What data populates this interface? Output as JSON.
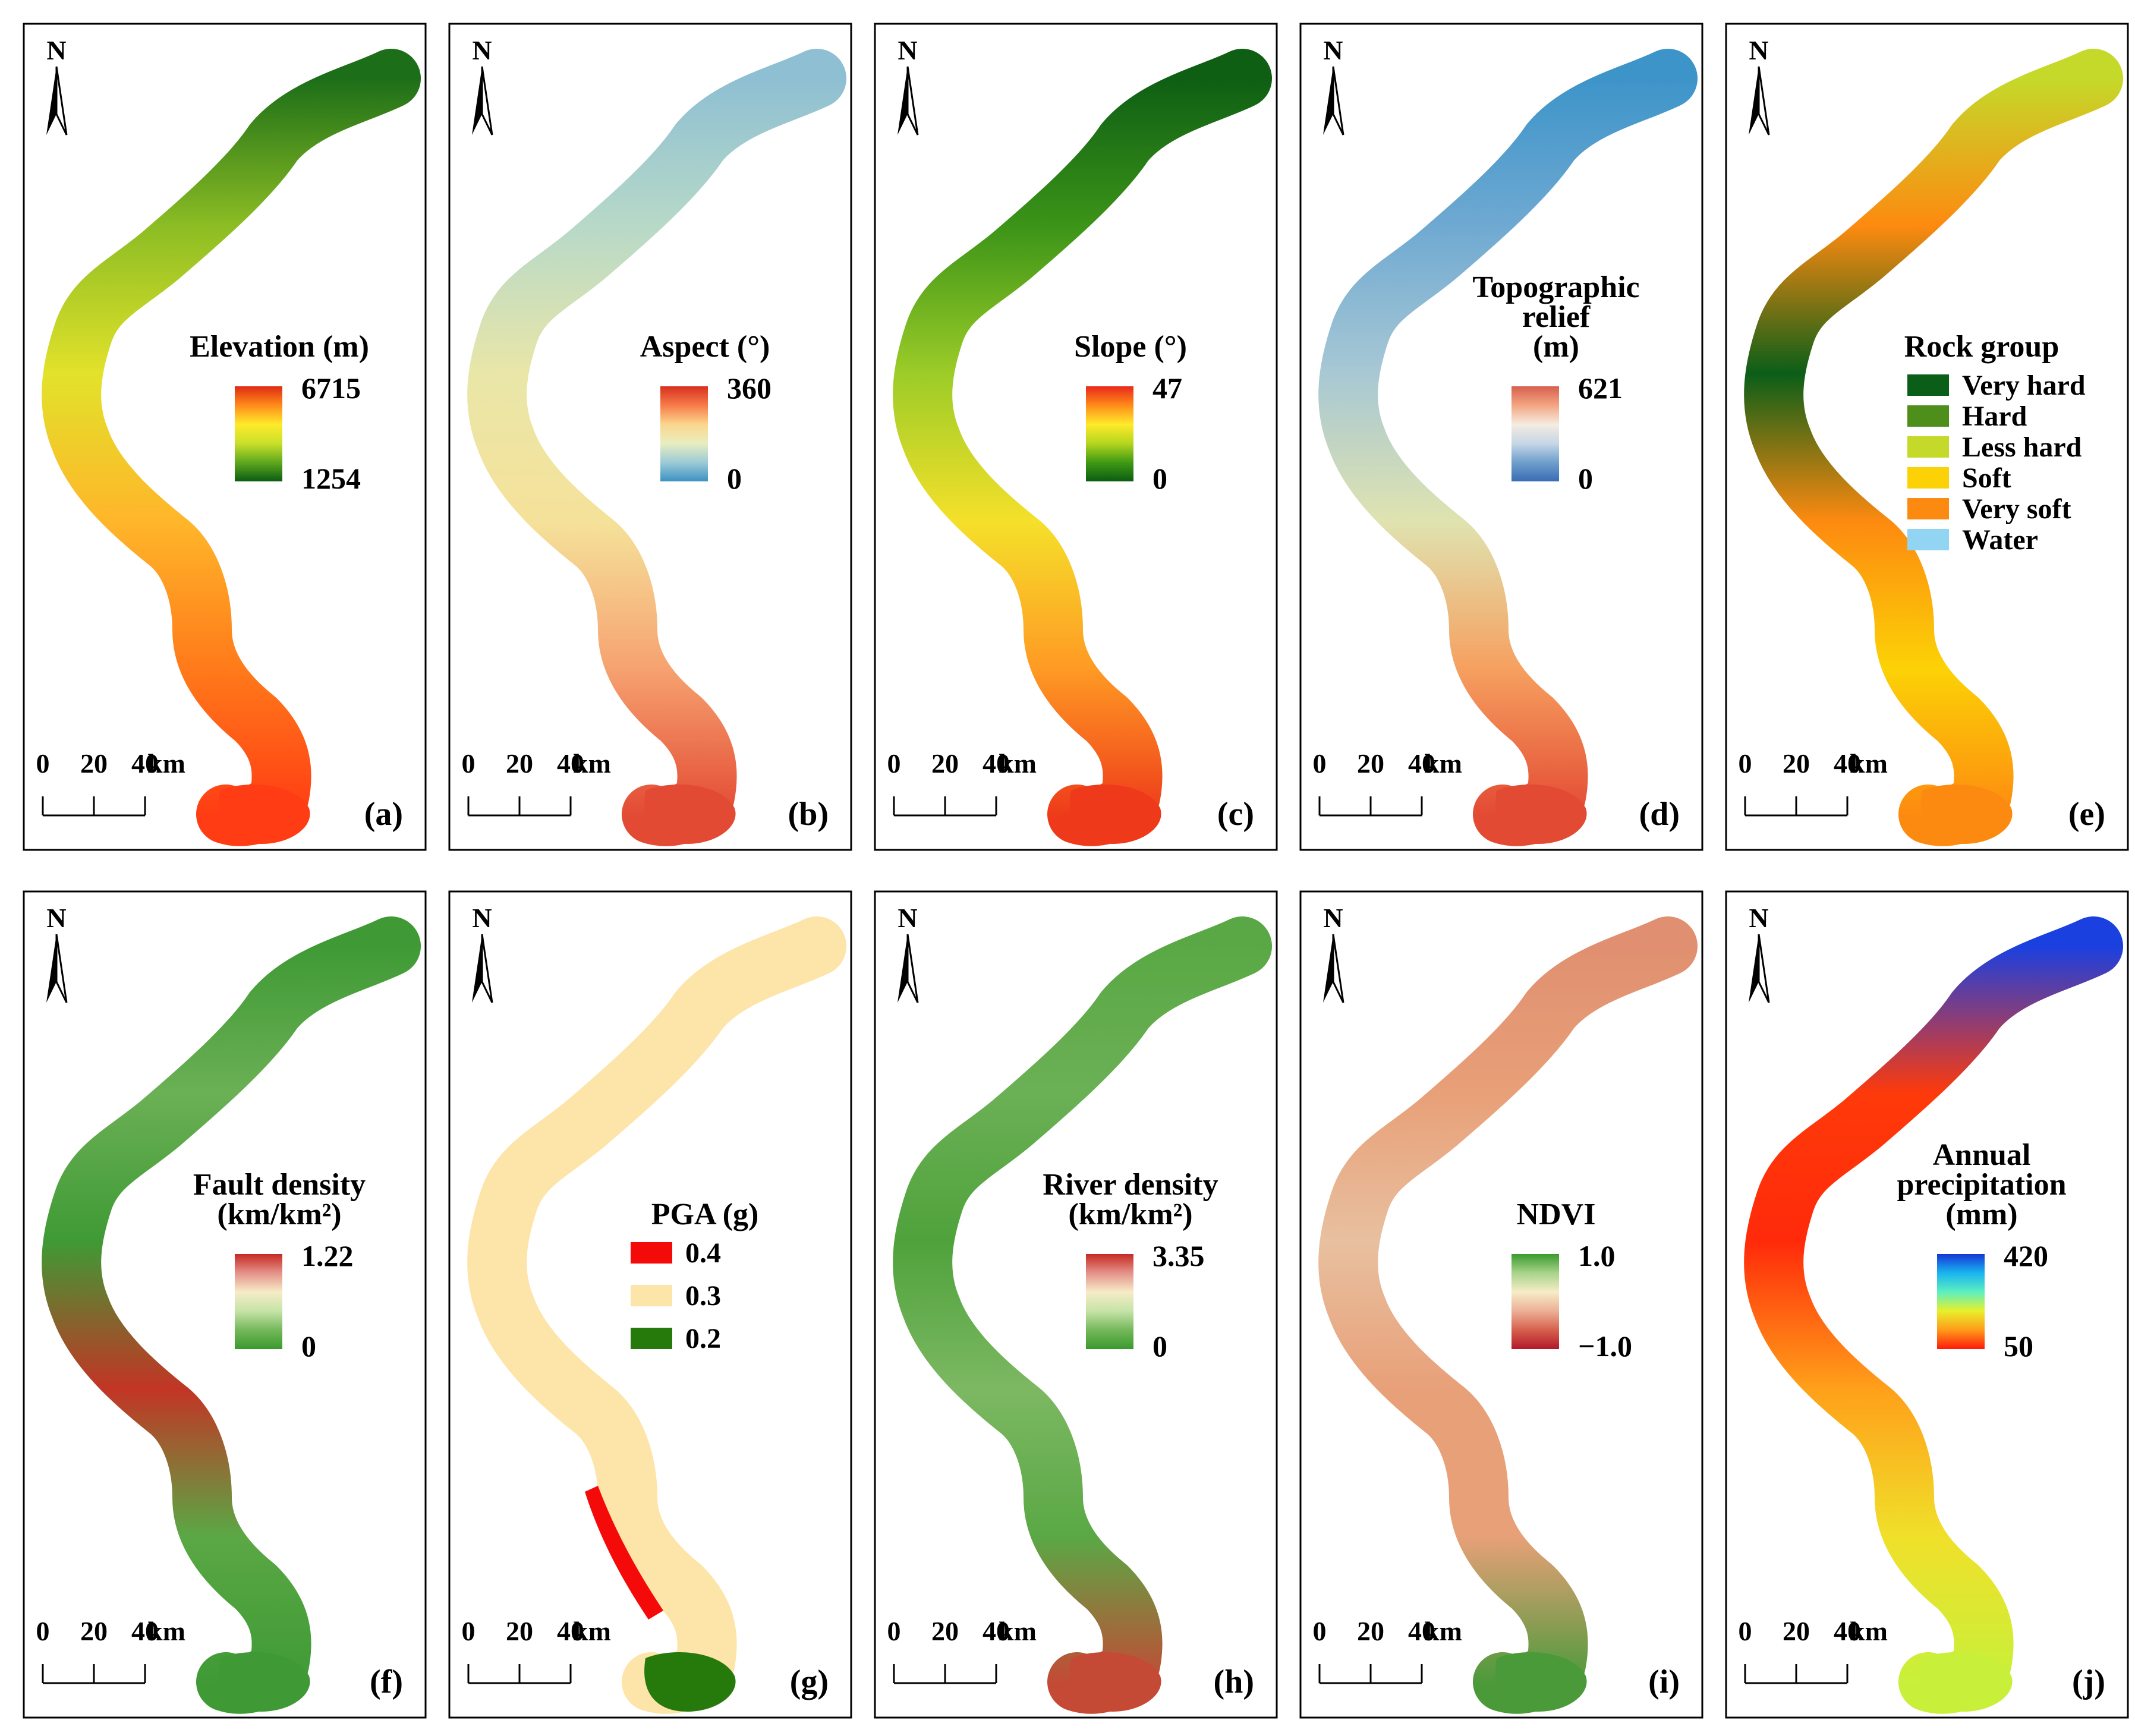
{
  "north_label": "N",
  "scale_bar": {
    "tick_labels": [
      "0",
      "20",
      "40"
    ],
    "unit": "km"
  },
  "panels": [
    {
      "label": "(a)",
      "legend": {
        "type": "ramp",
        "title_lines": [
          "Elevation (m)"
        ],
        "max": "6715",
        "min": "1254",
        "stops": [
          "#e02a12",
          "#ff8c1a",
          "#ffea2a",
          "#c9e02a",
          "#5fa81e",
          "#0b5c12"
        ],
        "fill_stops": [
          "#ff3c14",
          "#ff7a1a",
          "#ffb62a",
          "#e2e22a",
          "#8cbd24",
          "#1c6e18"
        ]
      }
    },
    {
      "label": "(b)",
      "legend": {
        "type": "ramp",
        "title_lines": [
          "Aspect (°)"
        ],
        "max": "360",
        "min": "0",
        "stops": [
          "#d7301f",
          "#f77b4a",
          "#fbd68c",
          "#e8eec0",
          "#9ccbd6",
          "#3d91c4"
        ],
        "fill_stops": [
          "#e34a33",
          "#f6a270",
          "#f5e29a",
          "#e9e6a8",
          "#b7d9c8",
          "#8ebfd2"
        ]
      }
    },
    {
      "label": "(c)",
      "legend": {
        "type": "ramp",
        "title_lines": [
          "Slope (°)"
        ],
        "max": "47",
        "min": "0",
        "stops": [
          "#e8281a",
          "#ff8c1a",
          "#ffea2a",
          "#b5d61e",
          "#3f9a14",
          "#0b5c12"
        ],
        "fill_stops": [
          "#ee3a1a",
          "#ff9a24",
          "#f5e02a",
          "#9ccc28",
          "#3c9418",
          "#0e5e14"
        ]
      }
    },
    {
      "label": "(d)",
      "legend": {
        "type": "ramp",
        "title_lines": [
          "Topographic",
          "relief",
          "(m)"
        ],
        "max": "621",
        "min": "0",
        "stops": [
          "#d6604d",
          "#f4a582",
          "#f5ece0",
          "#c6d7e6",
          "#6f9fcc",
          "#3a6db3"
        ],
        "fill_stops": [
          "#e34a33",
          "#f6a060",
          "#dfe3b0",
          "#a8c8d4",
          "#6fa9d2",
          "#3d94c9"
        ]
      }
    },
    {
      "label": "(e)",
      "legend": {
        "type": "classes",
        "title_lines": [
          "Rock group"
        ],
        "classes": [
          {
            "name": "Very hard",
            "color": "#0b5e18"
          },
          {
            "name": "Hard",
            "color": "#4d8f1a"
          },
          {
            "name": "Less hard",
            "color": "#c5d92a"
          },
          {
            "name": "Soft",
            "color": "#fcd206"
          },
          {
            "name": "Very soft",
            "color": "#fd8a10"
          },
          {
            "name": "Water",
            "color": "#91d5f2"
          }
        ],
        "fill_stops": [
          "#fd8a10",
          "#fcd206",
          "#fd8a10",
          "#0b5e18",
          "#fd8a10",
          "#c5d92a"
        ]
      }
    },
    {
      "label": "(f)",
      "legend": {
        "type": "ramp",
        "title_lines": [
          "Fault density",
          "(km/km²)"
        ],
        "max": "1.22",
        "min": "0",
        "stops": [
          "#c62a24",
          "#e4928a",
          "#f6ecc8",
          "#c6e3a8",
          "#74b85a",
          "#3a9a2e"
        ],
        "fill_stops": [
          "#3f9a35",
          "#5aa845",
          "#c23525",
          "#3f9a35",
          "#6bb055",
          "#3f9a35"
        ]
      }
    },
    {
      "label": "(g)",
      "legend": {
        "type": "classes",
        "title_lines": [
          "PGA (g)"
        ],
        "classes": [
          {
            "name": "0.4",
            "color": "#f50a0a"
          },
          {
            "name": "0.3",
            "color": "#fde4a8"
          },
          {
            "name": "0.2",
            "color": "#267a0c"
          }
        ],
        "fill_stops": [
          "#fde4a8",
          "#fde4a8",
          "#fde4a8",
          "#fde4a8",
          "#fde4a8",
          "#fde4a8"
        ]
      }
    },
    {
      "label": "(h)",
      "legend": {
        "type": "ramp",
        "title_lines": [
          "River density",
          "(km/km²)"
        ],
        "max": "3.35",
        "min": "0",
        "stops": [
          "#c62a24",
          "#e4928a",
          "#f6ecc8",
          "#c6e3a8",
          "#74b85a",
          "#3a9a2e"
        ],
        "fill_stops": [
          "#c44a35",
          "#5aa845",
          "#7cb862",
          "#4fa23c",
          "#6bb055",
          "#5aa845"
        ]
      }
    },
    {
      "label": "(i)",
      "legend": {
        "type": "ramp",
        "title_lines": [
          "NDVI"
        ],
        "max": "1.0",
        "min": "−1.0",
        "stops": [
          "#3a9a2e",
          "#a8d48a",
          "#f6ecc8",
          "#ecb096",
          "#d6604d",
          "#b2182b"
        ],
        "fill_stops": [
          "#4b9a3a",
          "#e8a078",
          "#e8a078",
          "#e8c0a0",
          "#e8a078",
          "#e09070"
        ]
      }
    },
    {
      "label": "(j)",
      "legend": {
        "type": "ramp",
        "title_lines": [
          "Annual",
          "precipitation",
          "(mm)"
        ],
        "max": "420",
        "min": "50",
        "stops": [
          "#1437d6",
          "#1ab4f0",
          "#5cf0c0",
          "#e8f02a",
          "#ff9a1a",
          "#ff1a0a"
        ],
        "fill_stops": [
          "#c8f03a",
          "#f0e02a",
          "#ffa01a",
          "#ff2a0a",
          "#ff3a0a",
          "#1a40e0"
        ]
      }
    }
  ]
}
